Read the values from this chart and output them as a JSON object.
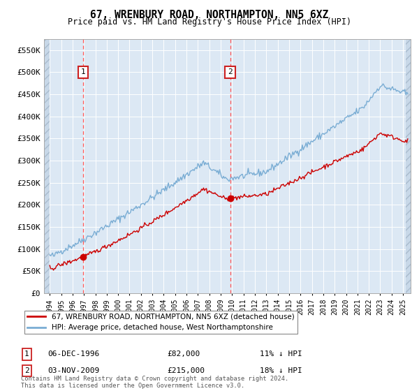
{
  "title": "67, WRENBURY ROAD, NORTHAMPTON, NN5 6XZ",
  "subtitle": "Price paid vs. HM Land Registry's House Price Index (HPI)",
  "ylim": [
    0,
    575000
  ],
  "ytick_labels": [
    "£0",
    "£50K",
    "£100K",
    "£150K",
    "£200K",
    "£250K",
    "£300K",
    "£350K",
    "£400K",
    "£450K",
    "£500K",
    "£550K"
  ],
  "price_paid_color": "#cc0000",
  "hpi_color": "#7aadd4",
  "legend_label_price": "67, WRENBURY ROAD, NORTHAMPTON, NN5 6XZ (detached house)",
  "legend_label_hpi": "HPI: Average price, detached house, West Northamptonshire",
  "footer": "Contains HM Land Registry data © Crown copyright and database right 2024.\nThis data is licensed under the Open Government Licence v3.0.",
  "background_color": "#dce8f4",
  "grid_color": "#ffffff",
  "dashed_line_color": "#ff5555",
  "box1_label": "1",
  "box2_label": "2",
  "ann1_date": "06-DEC-1996",
  "ann1_price": "£82,000",
  "ann1_hpi": "11% ↓ HPI",
  "ann2_date": "03-NOV-2009",
  "ann2_price": "£215,000",
  "ann2_hpi": "18% ↓ HPI"
}
